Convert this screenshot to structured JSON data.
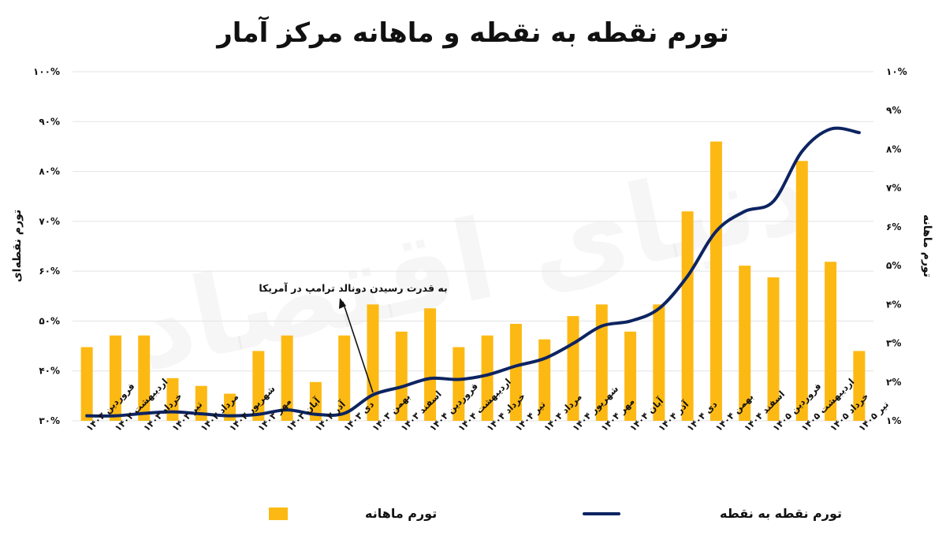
{
  "title": "تورم نقطه به نقطه و ماهانه مرکز آمار",
  "watermark": "دنیای اقتصاد",
  "colors": {
    "bar": "#FDB913",
    "line": "#0D2461",
    "grid": "#e3e3e3",
    "text": "#111111"
  },
  "chart_data": {
    "type": "bar+line",
    "title": "تورم نقطه به نقطه و ماهانه مرکز آمار",
    "categories": [
      "فروردین ۱۴۰۳",
      "اردیبهشت ۱۴۰۳",
      "خرداد ۱۴۰۳",
      "تیر ۱۴۰۳",
      "مرداد ۱۴۰۳",
      "شهریور ۱۴۰۳",
      "مهر ۱۴۰۳",
      "آبان ۱۴۰۳",
      "آذر ۱۴۰۳",
      "دی ۱۴۰۳",
      "بهمن ۱۴۰۳",
      "اسفند ۱۴۰۳",
      "فروردین ۱۴۰۴",
      "اردیبهشت ۱۴۰۴",
      "خرداد ۱۴۰۴",
      "تیر ۱۴۰۴",
      "مرداد ۱۴۰۴",
      "شهریور ۱۴۰۴",
      "مهر ۱۴۰۴",
      "آبان ۱۴۰۴",
      "آذر ۱۴۰۴",
      "دی ۱۴۰۴",
      "بهمن ۱۴۰۴",
      "اسفند ۱۴۰۴",
      "فروردین ۱۴۰۵",
      "اردیبهشت ۱۴۰۵",
      "خرداد ۱۴۰۵",
      "تیر ۱۴۰۵"
    ],
    "series": [
      {
        "name": "تورم ماهانه",
        "type": "bar",
        "axis": "right",
        "values": [
          2.9,
          3.2,
          3.2,
          2.1,
          1.9,
          1.7,
          2.8,
          3.2,
          2.0,
          3.2,
          4.0,
          3.3,
          3.9,
          2.9,
          3.2,
          3.5,
          3.1,
          3.7,
          4.0,
          3.3,
          4.0,
          6.4,
          8.2,
          5.0,
          4.7,
          7.7,
          5.1,
          2.8
        ]
      },
      {
        "name": "تورم نقطه به نقطه",
        "type": "line",
        "axis": "left",
        "values": [
          31.0,
          31.0,
          31.5,
          31.8,
          31.4,
          31.0,
          31.3,
          32.2,
          31.3,
          31.5,
          35.2,
          36.8,
          38.5,
          38.3,
          39.2,
          41.0,
          42.5,
          45.5,
          49.0,
          50.0,
          52.5,
          59.0,
          68.0,
          72.0,
          74.0,
          84.0,
          88.5,
          87.8
        ]
      }
    ],
    "y_left": {
      "label": "تورم نقطه‌ای",
      "min": 30,
      "max": 100,
      "ticks": [
        "۳۰%",
        "۴۰%",
        "۵۰%",
        "۶۰%",
        "۷۰%",
        "۸۰%",
        "۹۰%",
        "۱۰۰%"
      ]
    },
    "y_right": {
      "label": "تورم ماهانه",
      "min": 1,
      "max": 10,
      "ticks": [
        "۱%",
        "۲%",
        "۳%",
        "۴%",
        "۵%",
        "۶%",
        "۷%",
        "۸%",
        "۹%",
        "۱۰%"
      ]
    },
    "annotation": {
      "text": "به قدرت رسیدن دونالد ترامپ در آمریکا",
      "category_index": 10
    },
    "grid": true,
    "legend_position": "bottom"
  }
}
